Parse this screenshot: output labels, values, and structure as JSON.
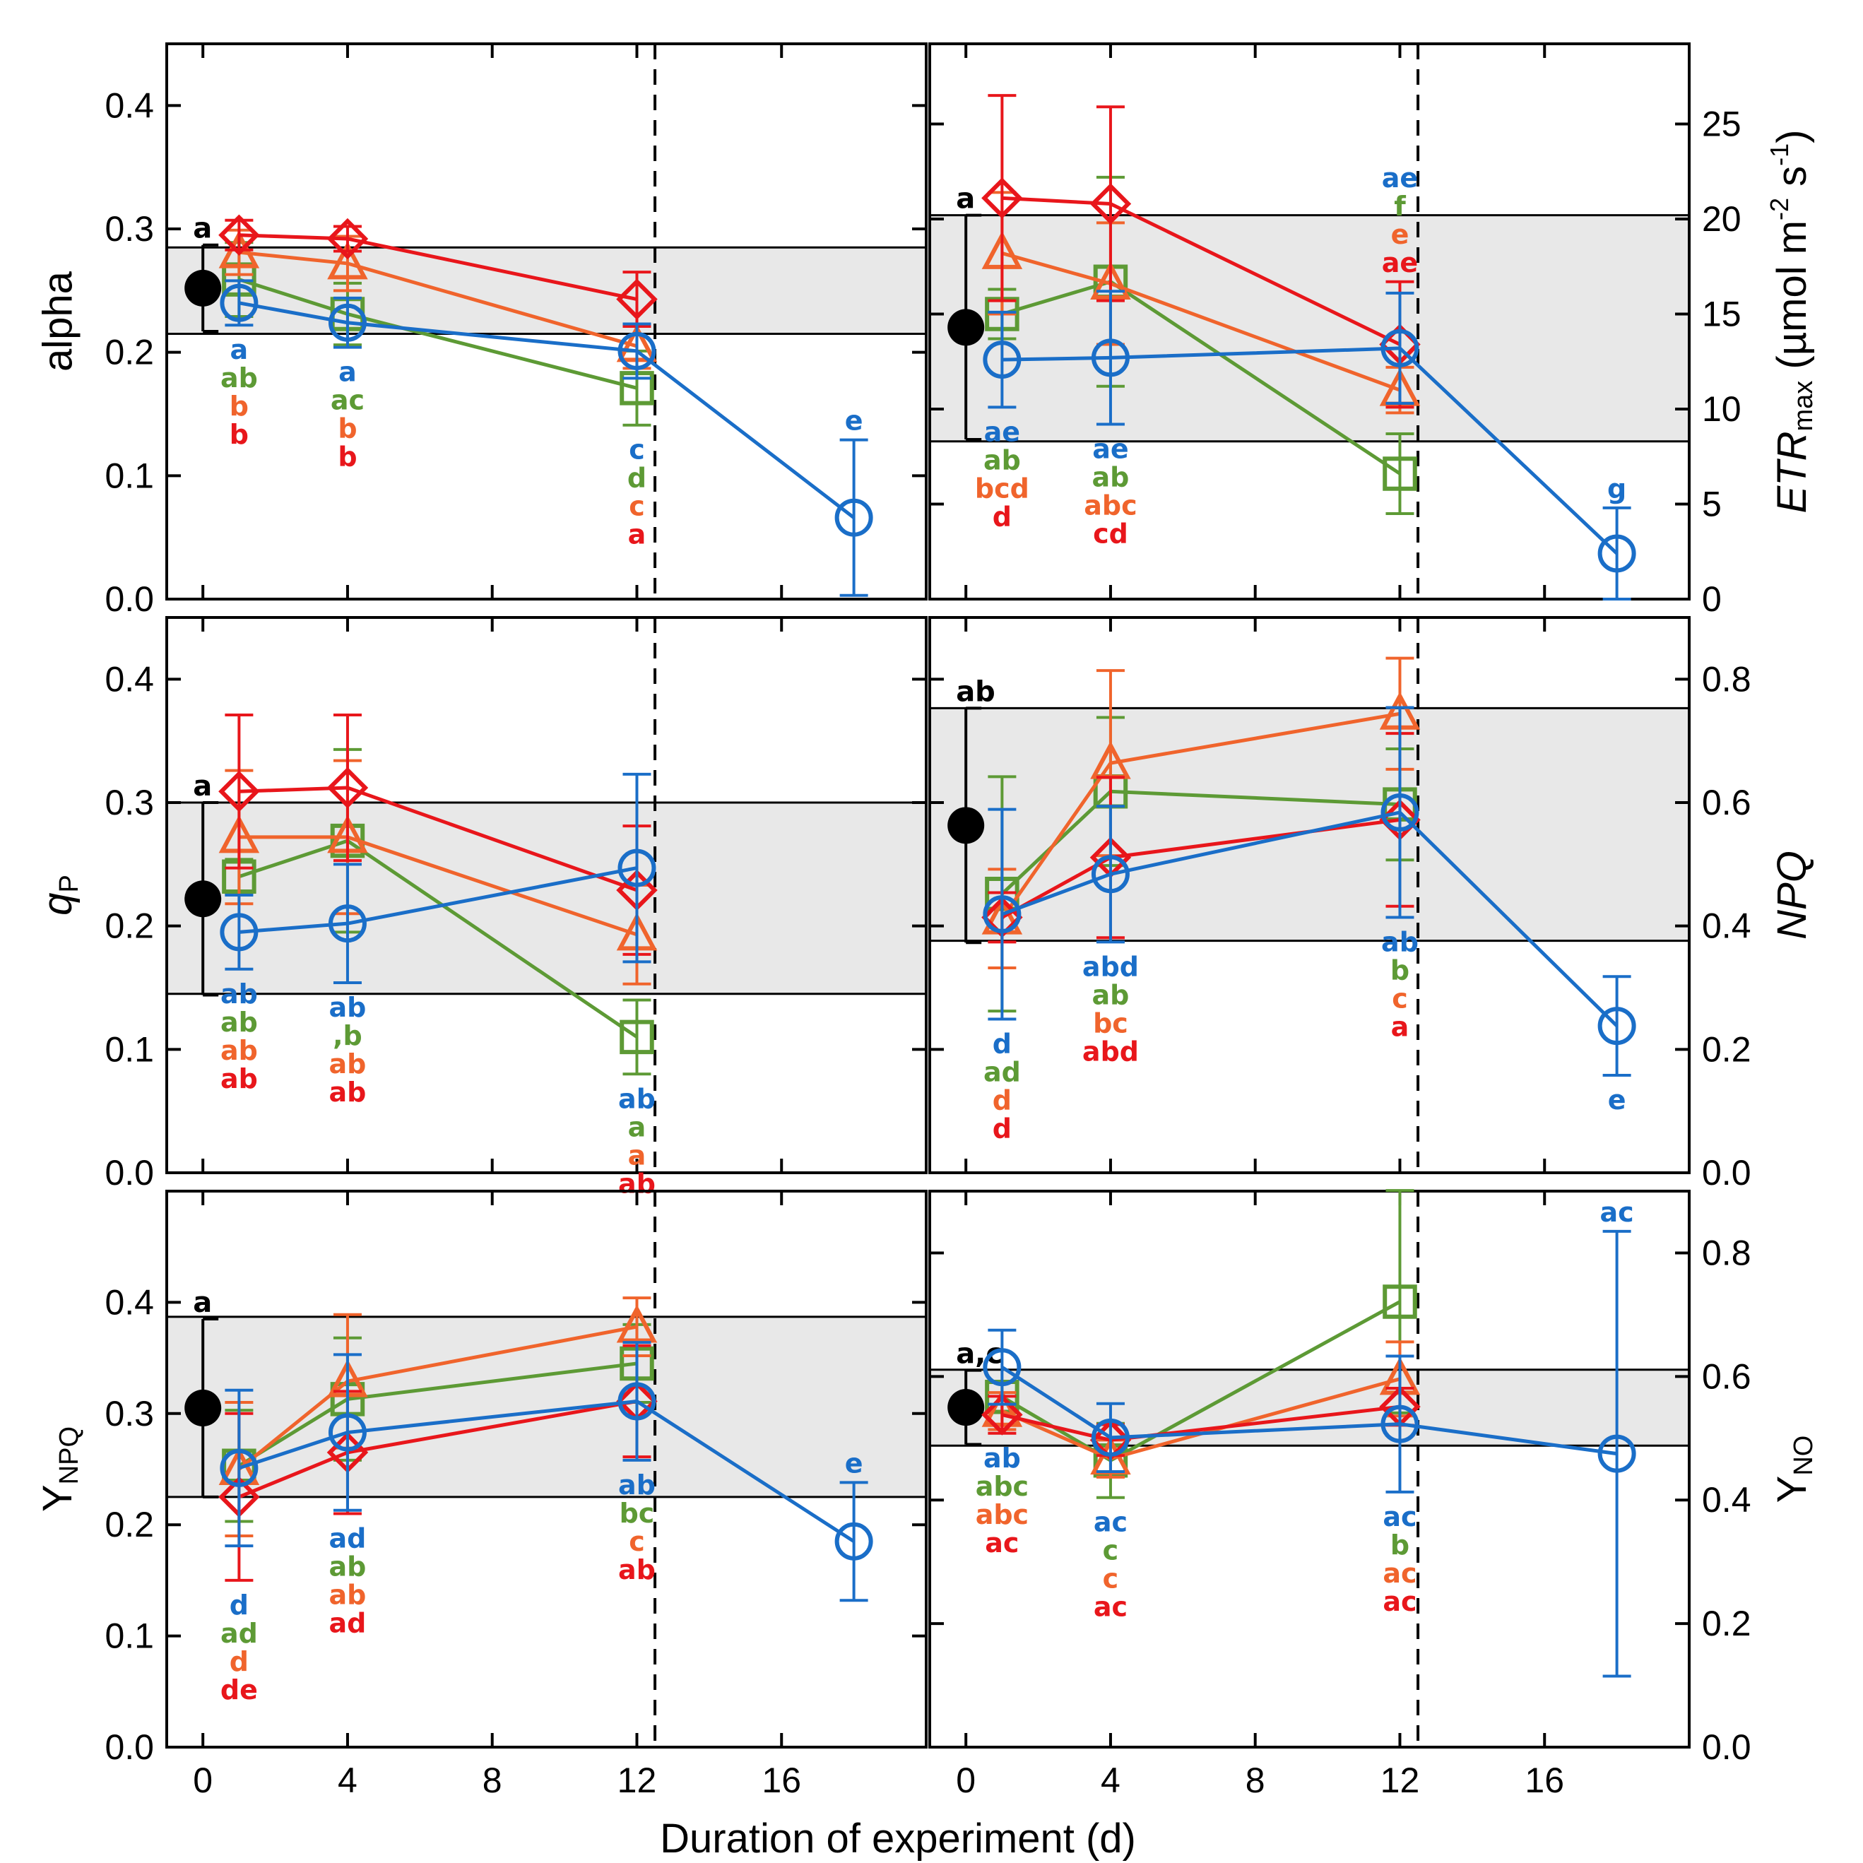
{
  "figure": {
    "xlabel": "Duration of experiment (d)",
    "x_ticks": [
      0,
      4,
      8,
      12,
      16
    ],
    "colors": {
      "red": "#e8161b",
      "orange": "#f0642c",
      "green": "#5d9a35",
      "blue": "#1a6ec8",
      "black": "#000000",
      "band": "#e8e8e8"
    }
  },
  "chart_data": [
    {
      "id": "alpha",
      "type": "scatter",
      "title": "",
      "ylabel": "alpha",
      "ylabel_side": "left",
      "xlim": [
        -1,
        20
      ],
      "ylim": [
        0,
        0.45
      ],
      "yticks": [
        0.0,
        0.1,
        0.2,
        0.3,
        0.4
      ],
      "ytick_decimals": 1,
      "band": [
        0.215,
        0.285
      ],
      "vline_x": 12.5,
      "control": {
        "x": 0,
        "y": 0.252,
        "err": 0.035,
        "label": "a"
      },
      "series": [
        {
          "name": "red",
          "marker": "diamond",
          "x": [
            1,
            4,
            12
          ],
          "y": [
            0.295,
            0.292,
            0.243
          ],
          "err": [
            0.012,
            0.01,
            0.022
          ]
        },
        {
          "name": "orange",
          "marker": "triangle",
          "x": [
            1,
            4,
            12
          ],
          "y": [
            0.281,
            0.272,
            0.205
          ],
          "err": [
            0.018,
            0.022,
            0.018
          ]
        },
        {
          "name": "green",
          "marker": "square",
          "x": [
            1,
            4,
            12
          ],
          "y": [
            0.259,
            0.231,
            0.171
          ],
          "err": [
            0.03,
            0.025,
            0.03
          ]
        },
        {
          "name": "blue",
          "marker": "circle",
          "x": [
            1,
            4,
            12,
            18
          ],
          "y": [
            0.24,
            0.224,
            0.201,
            0.066
          ],
          "err": [
            0.018,
            0.02,
            0.022,
            0.063
          ]
        }
      ],
      "letters": [
        {
          "x": 1,
          "pos": "below",
          "items": [
            [
              "blue",
              "a"
            ],
            [
              "green",
              "ab"
            ],
            [
              "orange",
              "b"
            ],
            [
              "red",
              "b"
            ]
          ]
        },
        {
          "x": 4,
          "pos": "below",
          "items": [
            [
              "blue",
              "a"
            ],
            [
              "green",
              "ac"
            ],
            [
              "orange",
              "b"
            ],
            [
              "red",
              "b"
            ]
          ]
        },
        {
          "x": 12,
          "pos": "below",
          "items": [
            [
              "blue",
              "c"
            ],
            [
              "green",
              "d"
            ],
            [
              "orange",
              "c"
            ],
            [
              "red",
              "a"
            ]
          ]
        },
        {
          "x": 18,
          "pos": "above",
          "items": [
            [
              "blue",
              "e"
            ]
          ]
        }
      ]
    },
    {
      "id": "etr",
      "type": "scatter",
      "title": "",
      "ylabel": "ETRmax (µmol m-2 s-1)",
      "ylabel_parts": {
        "italic": "ETR",
        "sub": "max",
        "unit": " (µmol m",
        "sup1": "-2",
        "mid": " s",
        "sup2": "-1",
        "end": ")"
      },
      "ylabel_side": "right",
      "xlim": [
        -1,
        20
      ],
      "ylim": [
        0,
        29.22
      ],
      "yticks": [
        0,
        5,
        10,
        15,
        20,
        25
      ],
      "ytick_decimals": 0,
      "band": [
        8.3,
        20.2
      ],
      "vline_x": 12.5,
      "control": {
        "x": 0,
        "y": 14.3,
        "err": 5.9,
        "label": "a"
      },
      "series": [
        {
          "name": "red",
          "marker": "diamond",
          "x": [
            1,
            4,
            12
          ],
          "y": [
            21.1,
            20.8,
            13.4
          ],
          "err": [
            5.4,
            5.1,
            3.3
          ]
        },
        {
          "name": "orange",
          "marker": "triangle",
          "x": [
            1,
            4,
            12
          ],
          "y": [
            18.2,
            16.6,
            11.0
          ],
          "err": [
            3.2,
            3.2,
            1.2
          ]
        },
        {
          "name": "green",
          "marker": "square",
          "x": [
            1,
            4,
            12
          ],
          "y": [
            15.0,
            16.7,
            6.6
          ],
          "err": [
            1.3,
            5.5,
            2.1
          ]
        },
        {
          "name": "blue",
          "marker": "circle",
          "x": [
            1,
            4,
            12,
            18
          ],
          "y": [
            12.6,
            12.7,
            13.2,
            2.4
          ],
          "err": [
            2.5,
            3.5,
            2.9,
            2.4
          ]
        }
      ],
      "letters": [
        {
          "x": 1,
          "pos": "below",
          "items": [
            [
              "blue",
              "ae"
            ],
            [
              "green",
              "ab"
            ],
            [
              "orange",
              "bcd"
            ],
            [
              "red",
              "d"
            ]
          ]
        },
        {
          "x": 4,
          "pos": "below",
          "items": [
            [
              "blue",
              "ae"
            ],
            [
              "green",
              "ab"
            ],
            [
              "orange",
              "abc"
            ],
            [
              "red",
              "cd"
            ]
          ]
        },
        {
          "x": 12,
          "pos": "above",
          "items": [
            [
              "blue",
              "ae"
            ],
            [
              "green",
              "f"
            ],
            [
              "orange",
              "e"
            ],
            [
              "red",
              "ae"
            ]
          ]
        },
        {
          "x": 18,
          "pos": "above",
          "items": [
            [
              "blue",
              "g"
            ]
          ]
        }
      ]
    },
    {
      "id": "qp",
      "type": "scatter",
      "title": "",
      "ylabel": "qP",
      "ylabel_parts": {
        "italic": "q",
        "sub": "P"
      },
      "ylabel_side": "left",
      "xlim": [
        -1,
        20
      ],
      "ylim": [
        0,
        0.45
      ],
      "yticks": [
        0.0,
        0.1,
        0.2,
        0.3,
        0.4
      ],
      "ytick_decimals": 1,
      "band": [
        0.145,
        0.3
      ],
      "vline_x": 12.5,
      "control": {
        "x": 0,
        "y": 0.222,
        "err": 0.078,
        "label": "a"
      },
      "series": [
        {
          "name": "red",
          "marker": "diamond",
          "x": [
            1,
            4,
            12
          ],
          "y": [
            0.309,
            0.312,
            0.229
          ],
          "err": [
            0.062,
            0.059,
            0.052
          ]
        },
        {
          "name": "orange",
          "marker": "triangle",
          "x": [
            1,
            4,
            12
          ],
          "y": [
            0.272,
            0.272,
            0.193
          ],
          "err": [
            0.054,
            0.062,
            0.04
          ]
        },
        {
          "name": "green",
          "marker": "square",
          "x": [
            1,
            4,
            12
          ],
          "y": [
            0.24,
            0.269,
            0.11
          ],
          "err": [
            0.014,
            0.074,
            0.03
          ]
        },
        {
          "name": "blue",
          "marker": "circle",
          "x": [
            1,
            4,
            12
          ],
          "y": [
            0.195,
            0.202,
            0.247
          ],
          "err": [
            0.03,
            0.048,
            0.076
          ]
        }
      ],
      "letters": [
        {
          "x": 1,
          "pos": "below",
          "items": [
            [
              "blue",
              "ab"
            ],
            [
              "green",
              "ab"
            ],
            [
              "orange",
              "ab"
            ],
            [
              "red",
              "ab"
            ]
          ]
        },
        {
          "x": 4,
          "pos": "below",
          "items": [
            [
              "blue",
              "ab"
            ],
            [
              "green",
              ",b"
            ],
            [
              "orange",
              "ab"
            ],
            [
              "red",
              "ab"
            ]
          ]
        },
        {
          "x": 12,
          "pos": "below",
          "items": [
            [
              "blue",
              "ab"
            ],
            [
              "green",
              "a"
            ],
            [
              "orange",
              "a"
            ],
            [
              "red",
              "ab"
            ]
          ]
        }
      ]
    },
    {
      "id": "npq",
      "type": "scatter",
      "title": "",
      "ylabel": "NPQ",
      "ylabel_parts": {
        "italic": "NPQ"
      },
      "ylabel_side": "right",
      "xlim": [
        -1,
        20
      ],
      "ylim": [
        0,
        0.9
      ],
      "yticks": [
        0.0,
        0.2,
        0.4,
        0.6,
        0.8
      ],
      "ytick_decimals": 1,
      "band": [
        0.376,
        0.753
      ],
      "vline_x": 12.5,
      "control": {
        "x": 0,
        "y": 0.563,
        "err": 0.19,
        "label": "ab"
      },
      "series": [
        {
          "name": "red",
          "marker": "diamond",
          "x": [
            1,
            4,
            12
          ],
          "y": [
            0.414,
            0.511,
            0.572
          ],
          "err": [
            0.04,
            0.13,
            0.14
          ]
        },
        {
          "name": "orange",
          "marker": "triangle",
          "x": [
            1,
            4,
            12
          ],
          "y": [
            0.412,
            0.664,
            0.744
          ],
          "err": [
            0.08,
            0.15,
            0.09
          ]
        },
        {
          "name": "green",
          "marker": "square",
          "x": [
            1,
            4,
            12
          ],
          "y": [
            0.452,
            0.618,
            0.597
          ],
          "err": [
            0.19,
            0.12,
            0.09
          ]
        },
        {
          "name": "blue",
          "marker": "circle",
          "x": [
            1,
            4,
            12,
            18
          ],
          "y": [
            0.419,
            0.484,
            0.584,
            0.238
          ],
          "err": [
            0.17,
            0.11,
            0.17,
            0.08
          ]
        }
      ],
      "letters": [
        {
          "x": 1,
          "pos": "below",
          "items": [
            [
              "blue",
              "d"
            ],
            [
              "green",
              "ad"
            ],
            [
              "orange",
              "d"
            ],
            [
              "red",
              "d"
            ]
          ]
        },
        {
          "x": 4,
          "pos": "below",
          "items": [
            [
              "blue",
              "abd"
            ],
            [
              "green",
              "ab"
            ],
            [
              "orange",
              "bc"
            ],
            [
              "red",
              "abd"
            ]
          ]
        },
        {
          "x": 12,
          "pos": "below",
          "items": [
            [
              "blue",
              "ab"
            ],
            [
              "green",
              "b"
            ],
            [
              "orange",
              "c"
            ],
            [
              "red",
              "a"
            ]
          ]
        },
        {
          "x": 18,
          "pos": "below",
          "items": [
            [
              "blue",
              "e"
            ]
          ]
        }
      ]
    },
    {
      "id": "ynpq",
      "type": "scatter",
      "title": "",
      "ylabel": "YNPQ",
      "ylabel_parts": {
        "italic": "Y",
        "sub": "NPQ"
      },
      "ylabel_side": "left",
      "xlim": [
        -1,
        20
      ],
      "ylim": [
        0,
        0.5
      ],
      "yticks": [
        0.0,
        0.1,
        0.2,
        0.3,
        0.4
      ],
      "ytick_decimals": 1,
      "band": [
        0.225,
        0.387
      ],
      "vline_x": 12.5,
      "control": {
        "x": 0,
        "y": 0.305,
        "err": 0.08,
        "label": "a"
      },
      "series": [
        {
          "name": "red",
          "marker": "diamond",
          "x": [
            1,
            4,
            12
          ],
          "y": [
            0.225,
            0.265,
            0.311
          ],
          "err": [
            0.075,
            0.055,
            0.05
          ]
        },
        {
          "name": "orange",
          "marker": "triangle",
          "x": [
            1,
            4,
            12
          ],
          "y": [
            0.25,
            0.329,
            0.378
          ],
          "err": [
            0.06,
            0.06,
            0.026
          ]
        },
        {
          "name": "green",
          "marker": "square",
          "x": [
            1,
            4,
            12
          ],
          "y": [
            0.253,
            0.313,
            0.345
          ],
          "err": [
            0.05,
            0.055,
            0.035
          ]
        },
        {
          "name": "blue",
          "marker": "circle",
          "x": [
            1,
            4,
            12,
            18
          ],
          "y": [
            0.251,
            0.283,
            0.311,
            0.185
          ],
          "err": [
            0.07,
            0.07,
            0.053,
            0.053
          ]
        }
      ],
      "letters": [
        {
          "x": 1,
          "pos": "below",
          "items": [
            [
              "blue",
              "d"
            ],
            [
              "green",
              "ad"
            ],
            [
              "orange",
              "d"
            ],
            [
              "red",
              "de"
            ]
          ]
        },
        {
          "x": 4,
          "pos": "below",
          "items": [
            [
              "blue",
              "ad"
            ],
            [
              "green",
              "ab"
            ],
            [
              "orange",
              "ab"
            ],
            [
              "red",
              "ad"
            ]
          ]
        },
        {
          "x": 12,
          "pos": "below",
          "items": [
            [
              "blue",
              "ab"
            ],
            [
              "green",
              "bc"
            ],
            [
              "orange",
              "c"
            ],
            [
              "red",
              "ab"
            ]
          ]
        },
        {
          "x": 18,
          "pos": "above",
          "items": [
            [
              "blue",
              "e"
            ]
          ]
        }
      ]
    },
    {
      "id": "yno",
      "type": "scatter",
      "title": "",
      "ylabel": "YNO",
      "ylabel_parts": {
        "italic": "Y",
        "sub": "NO"
      },
      "ylabel_side": "right",
      "xlim": [
        -1,
        20
      ],
      "ylim": [
        0,
        0.9
      ],
      "yticks": [
        0.0,
        0.2,
        0.4,
        0.6,
        0.8
      ],
      "ytick_decimals": 1,
      "band": [
        0.488,
        0.611
      ],
      "vline_x": 12.5,
      "control": {
        "x": 0,
        "y": 0.55,
        "err": 0.06,
        "label": "a,c"
      },
      "series": [
        {
          "name": "red",
          "marker": "diamond",
          "x": [
            1,
            4,
            12
          ],
          "y": [
            0.538,
            0.497,
            0.551
          ],
          "err": [
            0.03,
            0.025,
            0.03
          ]
        },
        {
          "name": "orange",
          "marker": "triangle",
          "x": [
            1,
            4,
            12
          ],
          "y": [
            0.544,
            0.467,
            0.596
          ],
          "err": [
            0.03,
            0.03,
            0.06
          ]
        },
        {
          "name": "green",
          "marker": "square",
          "x": [
            1,
            4,
            12
          ],
          "y": [
            0.567,
            0.464,
            0.721
          ],
          "err": [
            0.025,
            0.06,
            0.18
          ]
        },
        {
          "name": "blue",
          "marker": "circle",
          "x": [
            1,
            4,
            12,
            18
          ],
          "y": [
            0.615,
            0.501,
            0.523,
            0.475
          ],
          "err": [
            0.06,
            0.055,
            0.11,
            0.36
          ]
        }
      ],
      "letters": [
        {
          "x": 1,
          "pos": "below",
          "items": [
            [
              "blue",
              "ab"
            ],
            [
              "green",
              "abc"
            ],
            [
              "orange",
              "abc"
            ],
            [
              "red",
              "ac"
            ]
          ]
        },
        {
          "x": 4,
          "pos": "below",
          "items": [
            [
              "blue",
              "ac"
            ],
            [
              "green",
              "c"
            ],
            [
              "orange",
              "c"
            ],
            [
              "red",
              "ac"
            ]
          ]
        },
        {
          "x": 12,
          "pos": "below",
          "items": [
            [
              "blue",
              "ac"
            ],
            [
              "green",
              "b"
            ],
            [
              "orange",
              "ac"
            ],
            [
              "red",
              "ac"
            ]
          ]
        },
        {
          "x": 18,
          "pos": "above",
          "items": [
            [
              "blue",
              "ac"
            ]
          ]
        }
      ]
    }
  ]
}
